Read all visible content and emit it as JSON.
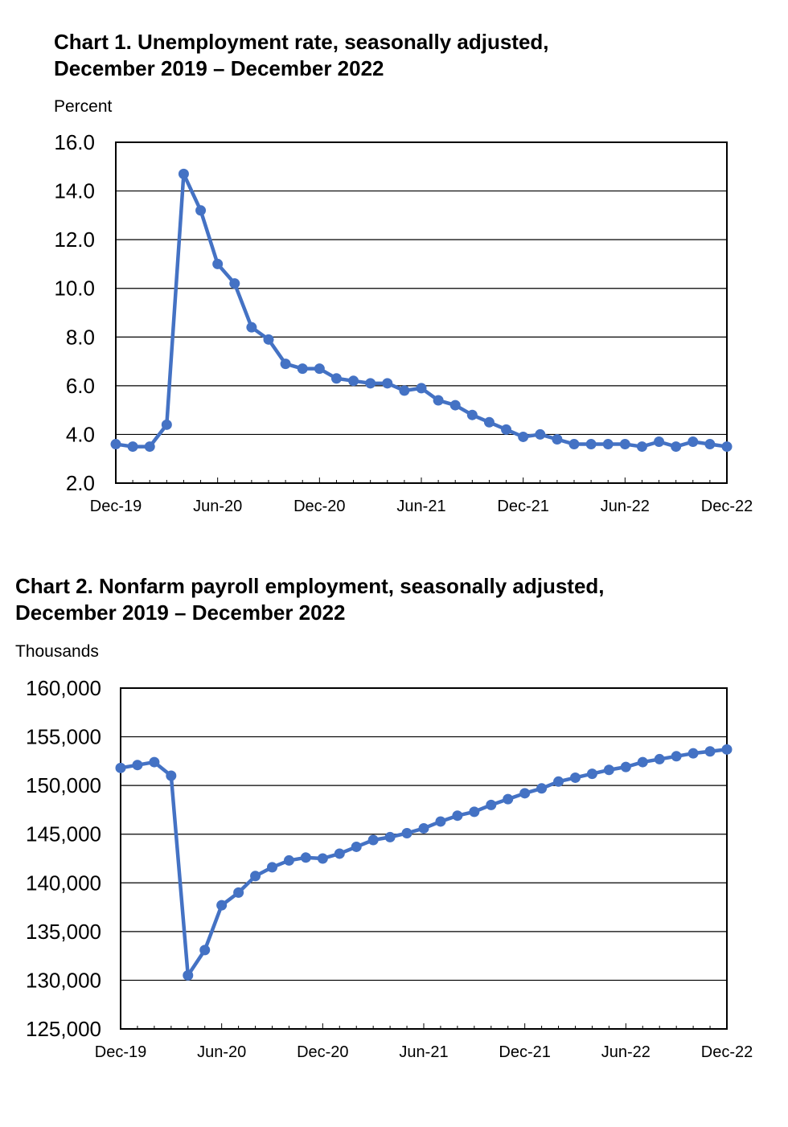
{
  "chart_data": [
    {
      "type": "line",
      "title_line1": "Chart 1. Unemployment rate, seasonally adjusted,",
      "title_line2": "December 2019 – December 2022",
      "ylabel": "Percent",
      "xlabel": "",
      "ylim": [
        2,
        16
      ],
      "yticks": [
        16,
        14,
        12,
        10,
        8,
        6,
        4,
        2
      ],
      "ytick_labels": [
        "16.0",
        "14.0",
        "12.0",
        "10.0",
        "8.0",
        "6.0",
        "4.0",
        "2.0"
      ],
      "xtick_labels": [
        "Dec-19",
        "Jun-20",
        "Dec-20",
        "Jun-21",
        "Dec-21",
        "Jun-22",
        "Dec-22"
      ],
      "xtick_month_index": [
        0,
        6,
        12,
        18,
        24,
        30,
        36
      ],
      "grid": true,
      "color": "#4472C4",
      "x_first": "Dec-19",
      "x_last": "Dec-22",
      "series": [
        {
          "values": [
            3.6,
            3.5,
            3.5,
            4.4,
            14.7,
            13.2,
            11.0,
            10.2,
            8.4,
            7.9,
            6.9,
            6.7,
            6.7,
            6.3,
            6.2,
            6.1,
            6.1,
            5.8,
            5.9,
            5.4,
            5.2,
            4.8,
            4.5,
            4.2,
            3.9,
            4.0,
            3.8,
            3.6,
            3.6,
            3.6,
            3.6,
            3.5,
            3.7,
            3.5,
            3.7,
            3.6,
            3.5
          ]
        }
      ]
    },
    {
      "type": "line",
      "title_line1": "Chart 2. Nonfarm payroll employment, seasonally adjusted,",
      "title_line2": "December 2019 – December 2022",
      "ylabel": "Thousands",
      "xlabel": "",
      "ylim": [
        125000,
        160000
      ],
      "yticks": [
        160000,
        155000,
        150000,
        145000,
        140000,
        135000,
        130000,
        125000
      ],
      "ytick_labels": [
        "160,000",
        "155,000",
        "150,000",
        "145,000",
        "140,000",
        "135,000",
        "130,000",
        "125,000"
      ],
      "xtick_labels": [
        "Dec-19",
        "Jun-20",
        "Dec-20",
        "Jun-21",
        "Dec-21",
        "Jun-22",
        "Dec-22"
      ],
      "xtick_month_index": [
        0,
        6,
        12,
        18,
        24,
        30,
        36
      ],
      "grid": true,
      "color": "#4472C4",
      "x_first": "Dec-19",
      "x_last": "Dec-22",
      "series": [
        {
          "values": [
            151800,
            152100,
            152400,
            151000,
            130500,
            133100,
            137700,
            139000,
            140700,
            141600,
            142300,
            142600,
            142500,
            143000,
            143700,
            144400,
            144700,
            145100,
            145600,
            146300,
            146900,
            147300,
            148000,
            148600,
            149200,
            149700,
            150400,
            150800,
            151200,
            151600,
            151900,
            152400,
            152700,
            153000,
            153300,
            153500,
            153700
          ]
        }
      ]
    }
  ]
}
